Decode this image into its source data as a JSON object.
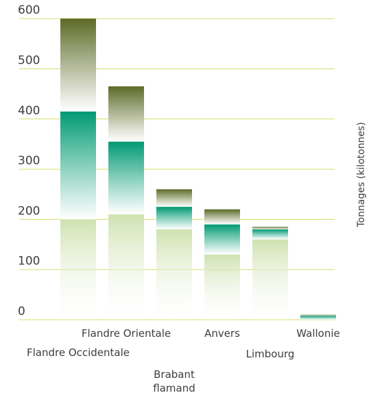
{
  "chart_data": {
    "type": "bar",
    "stacked": true,
    "ylabel": "Tonnages (kilotonnes)",
    "ylim": [
      0,
      600
    ],
    "yticks": [
      0,
      100,
      200,
      300,
      400,
      500,
      600
    ],
    "grid": true,
    "categories": [
      {
        "label": "Flandre Occidentale",
        "label_lines": [
          "Flandre Occidentale"
        ]
      },
      {
        "label": "Flandre Orientale",
        "label_lines": [
          "Flandre Orientale"
        ]
      },
      {
        "label": "Brabant flamand",
        "label_lines": [
          "Brabant",
          "flamand"
        ]
      },
      {
        "label": "Anvers",
        "label_lines": [
          "Anvers"
        ]
      },
      {
        "label": "Limbourg",
        "label_lines": [
          "Limbourg"
        ]
      },
      {
        "label": "Wallonie",
        "label_lines": [
          "Wallonie"
        ]
      }
    ],
    "series": [
      {
        "values": [
          200,
          210,
          180,
          130,
          160,
          0
        ],
        "color": "#cfe2b0"
      },
      {
        "values": [
          215,
          145,
          45,
          60,
          20,
          8
        ],
        "color": "#009a73"
      },
      {
        "values": [
          185,
          110,
          35,
          30,
          5,
          2
        ],
        "color": "#5c6a26"
      }
    ]
  }
}
